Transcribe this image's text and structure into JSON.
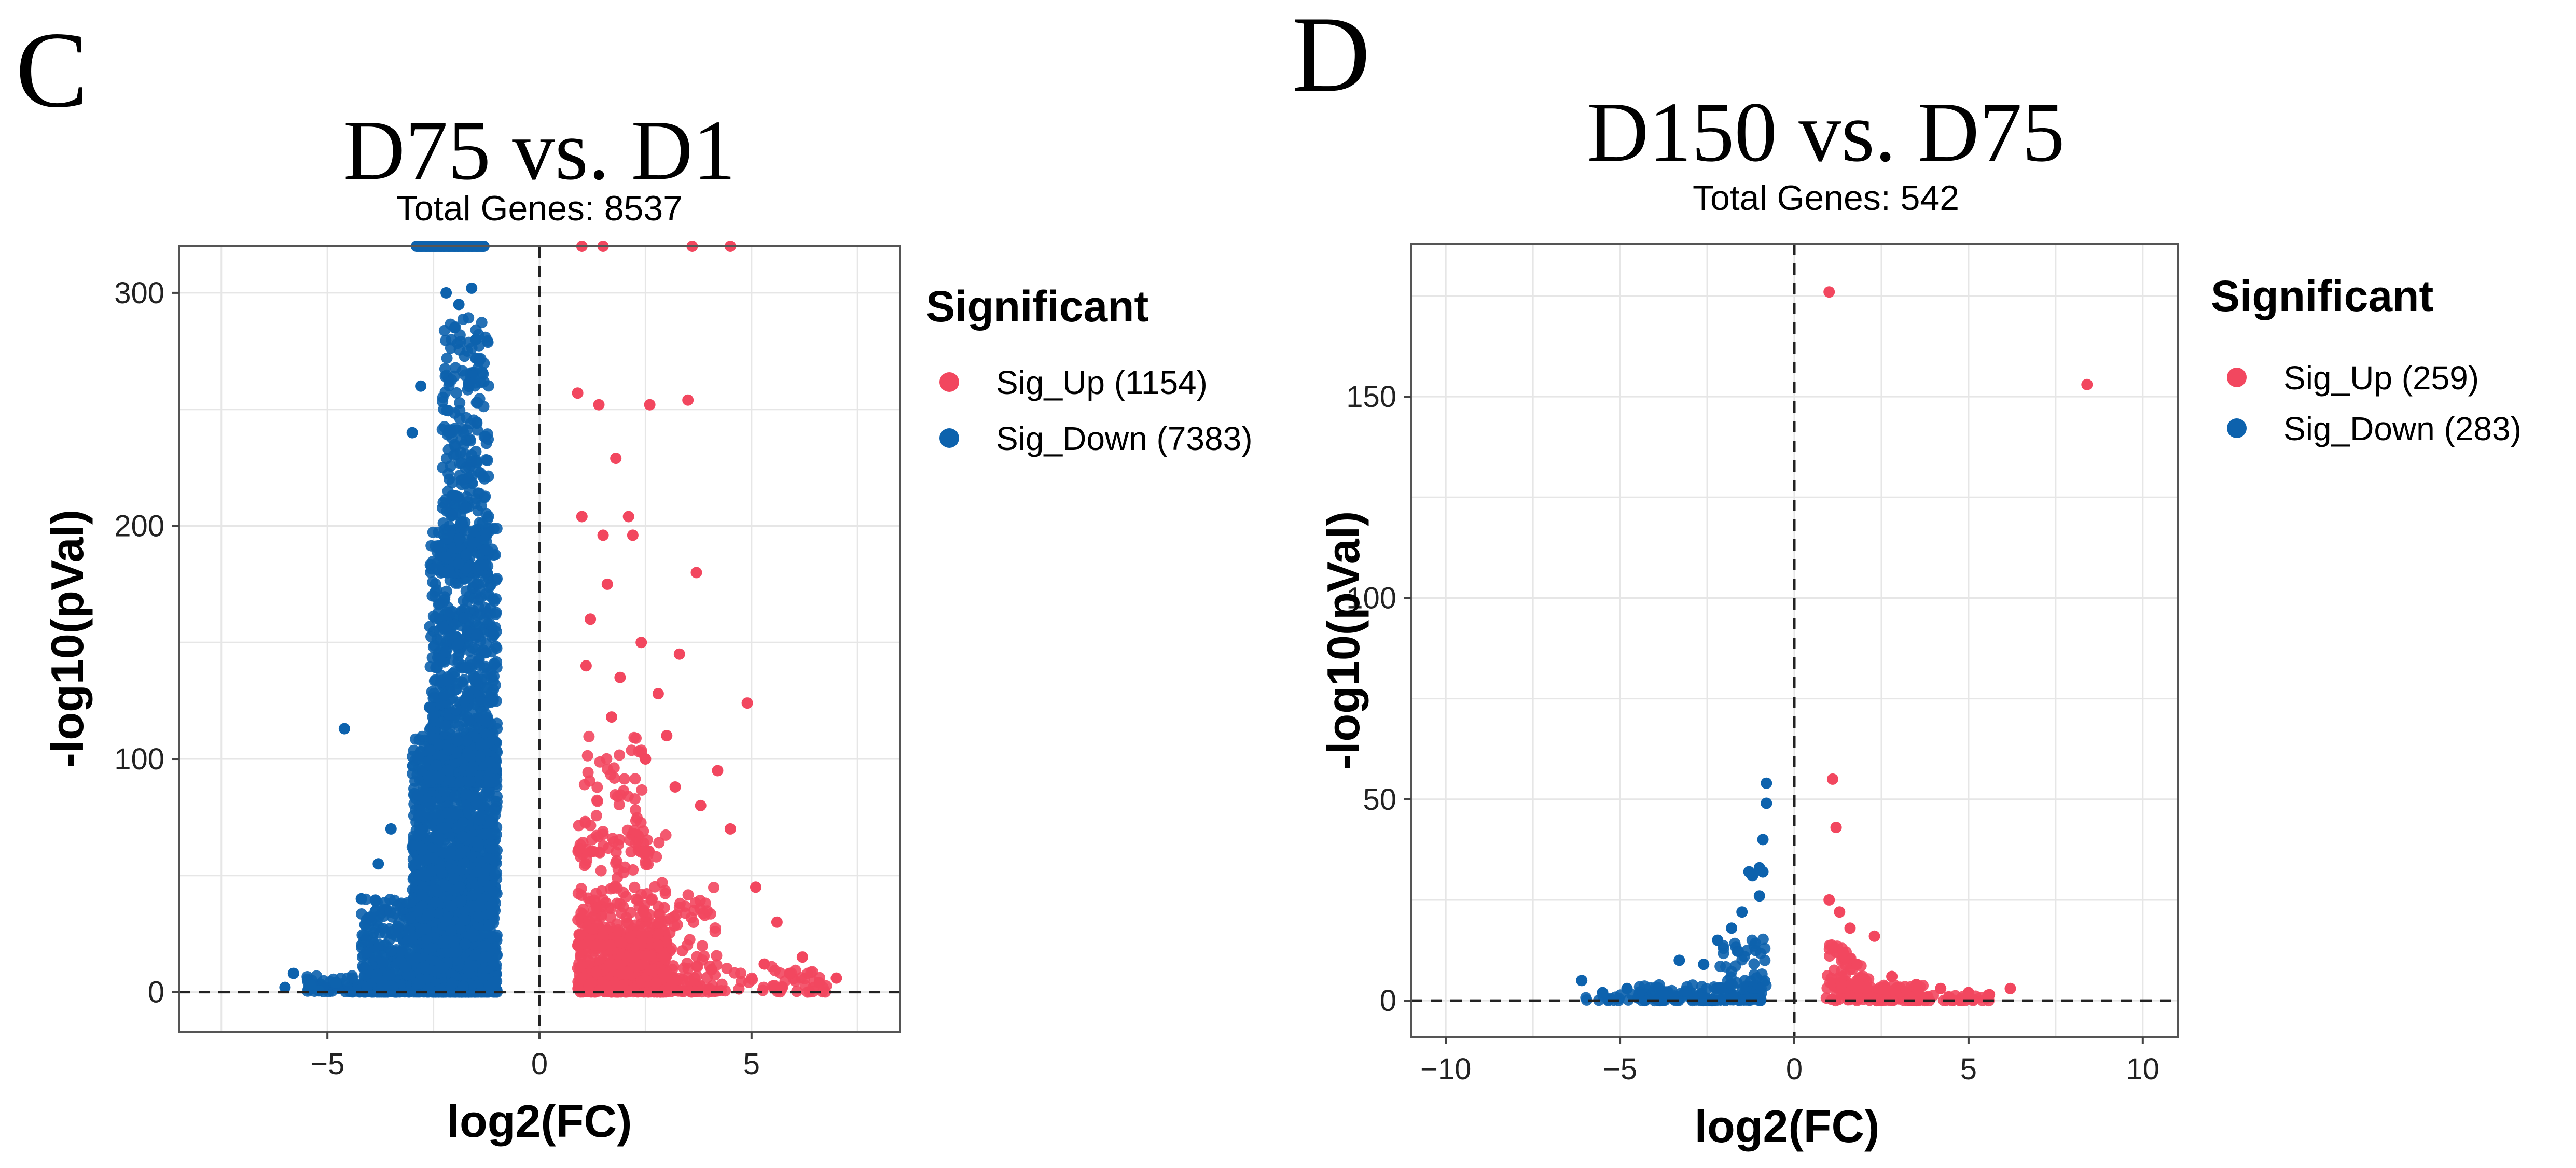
{
  "colors": {
    "sig_up": "#f2475f",
    "sig_down": "#0d62ad",
    "grid": "#e6e6e6",
    "axis": "#333333",
    "threshold": "#222222"
  },
  "chart_data": [
    {
      "type": "scatter",
      "panel_letter": "C",
      "title": "D75 vs. D1",
      "subtitle": "Total Genes: 8537",
      "xlabel": "log2(FC)",
      "ylabel": "-log10(pVal)",
      "xlim": [
        -8.5,
        8.5
      ],
      "ylim": [
        -17,
        320
      ],
      "xticks": [
        -5,
        0,
        5
      ],
      "yticks": [
        0,
        100,
        200,
        300
      ],
      "grid": true,
      "threshold_x": 0,
      "threshold_y": 0,
      "legend": {
        "title": "Significant",
        "position": "right",
        "items": [
          {
            "key": "up",
            "label": "Sig_Up (1154)",
            "color": "#f2475f"
          },
          {
            "key": "down",
            "label": "Sig_Down (7383)",
            "color": "#0d62ad"
          }
        ]
      },
      "series": {
        "up": {
          "name": "Sig_Up",
          "count": 1154,
          "points": [
            [
              0.9,
              257
            ],
            [
              1.4,
              252
            ],
            [
              2.6,
              252
            ],
            [
              3.5,
              254
            ],
            [
              1.8,
              229
            ],
            [
              1.0,
              204
            ],
            [
              1.5,
              196
            ],
            [
              2.1,
              204
            ],
            [
              2.2,
              196
            ],
            [
              3.7,
              180
            ],
            [
              3.3,
              145
            ],
            [
              4.9,
              124
            ],
            [
              1.6,
              175
            ],
            [
              1.2,
              160
            ],
            [
              2.4,
              150
            ],
            [
              1.9,
              135
            ],
            [
              2.8,
              128
            ],
            [
              3.0,
              110
            ],
            [
              4.2,
              95
            ],
            [
              3.8,
              80
            ],
            [
              1.1,
              140
            ],
            [
              1.7,
              118
            ],
            [
              2.5,
              100
            ],
            [
              3.2,
              88
            ],
            [
              4.5,
              70
            ],
            [
              5.1,
              45
            ],
            [
              5.6,
              30
            ],
            [
              6.2,
              15
            ],
            [
              7.0,
              6
            ],
            [
              6.6,
              4
            ],
            [
              5.9,
              8
            ],
            [
              5.3,
              12
            ],
            [
              1.5,
              320
            ],
            [
              4.5,
              320
            ],
            [
              3.6,
              320
            ],
            [
              1.0,
              320
            ]
          ],
          "cloud": {
            "layers": [
              {
                "n": 480,
                "x": [
                  0.9,
                  3.0
                ],
                "y": [
                  0,
                  25
                ]
              },
              {
                "n": 220,
                "x": [
                  0.9,
                  4.2
                ],
                "y": [
                  0,
                  45
                ]
              },
              {
                "n": 140,
                "x": [
                  0.9,
                  3.0
                ],
                "y": [
                  20,
                  75
                ]
              },
              {
                "n": 70,
                "x": [
                  0.9,
                  2.6
                ],
                "y": [
                  60,
                  110
                ]
              },
              {
                "n": 70,
                "x": [
                  2.5,
                  6.8
                ],
                "y": [
                  0,
                  12
                ]
              }
            ]
          }
        },
        "down": {
          "name": "Sig_Down",
          "count": 7383,
          "points": [
            [
              -4.6,
              113
            ],
            [
              -5.8,
              8
            ],
            [
              -6.0,
              2
            ],
            [
              -5.4,
              3
            ],
            [
              -4.8,
              4
            ],
            [
              -5.2,
              0.5
            ],
            [
              -4.2,
              40
            ],
            [
              -3.8,
              55
            ],
            [
              -3.5,
              70
            ],
            [
              -2.2,
              300
            ],
            [
              -1.6,
              302
            ],
            [
              -1.9,
              295
            ],
            [
              -2.0,
              285
            ],
            [
              -1.5,
              280
            ],
            [
              -3.0,
              240
            ],
            [
              -2.8,
              260
            ]
          ],
          "cloud": {
            "layers": [
              {
                "n": 2300,
                "x": [
                  -3.0,
                  -1.0
                ],
                "y": [
                  0,
                  110
                ]
              },
              {
                "n": 800,
                "x": [
                  -2.6,
                  -1.0
                ],
                "y": [
                  90,
                  200
                ]
              },
              {
                "n": 350,
                "x": [
                  -2.3,
                  -1.2
                ],
                "y": [
                  180,
                  290
                ]
              },
              {
                "n": 300,
                "x": [
                  -4.2,
                  -3.0
                ],
                "y": [
                  0,
                  40
                ]
              },
              {
                "n": 80,
                "x": [
                  -5.5,
                  -3.5
                ],
                "y": [
                  0,
                  8
                ]
              }
            ],
            "ceiling_band": {
              "x": [
                -2.9,
                -1.3
              ],
              "y": 320
            }
          }
        }
      }
    },
    {
      "type": "scatter",
      "panel_letter": "D",
      "title": "D150 vs. D75",
      "subtitle": "Total Genes: 542",
      "xlabel": "log2(FC)",
      "ylabel": "-log10(pVal)",
      "xlim": [
        -11,
        11
      ],
      "ylim": [
        -9,
        188
      ],
      "xticks": [
        -10,
        -5,
        0,
        5,
        10
      ],
      "yticks": [
        0,
        50,
        100,
        150
      ],
      "grid": true,
      "threshold_x": 0,
      "threshold_y": 0,
      "legend": {
        "title": "Significant",
        "position": "right",
        "items": [
          {
            "key": "up",
            "label": "Sig_Up (259)",
            "color": "#f2475f"
          },
          {
            "key": "down",
            "label": "Sig_Down (283)",
            "color": "#0d62ad"
          }
        ]
      },
      "series": {
        "up": {
          "name": "Sig_Up",
          "count": 259,
          "points": [
            [
              1.0,
              176
            ],
            [
              8.4,
              153
            ],
            [
              1.1,
              55
            ],
            [
              1.2,
              43
            ],
            [
              1.0,
              25
            ],
            [
              1.3,
              22
            ],
            [
              1.6,
              18
            ],
            [
              2.3,
              16
            ],
            [
              2.8,
              6
            ],
            [
              3.5,
              4
            ],
            [
              4.2,
              3
            ],
            [
              5.0,
              2
            ],
            [
              6.2,
              3
            ],
            [
              5.6,
              1.5
            ],
            [
              1.4,
              12
            ],
            [
              1.8,
              9
            ]
          ],
          "cloud": {
            "layers": [
              {
                "n": 130,
                "x": [
                  0.9,
                  3.8
                ],
                "y": [
                  0,
                  4
                ]
              },
              {
                "n": 60,
                "x": [
                  0.9,
                  2.2
                ],
                "y": [
                  3,
                  14
                ]
              },
              {
                "n": 30,
                "x": [
                  3.5,
                  5.6
                ],
                "y": [
                  0,
                  2.5
                ]
              }
            ]
          }
        },
        "down": {
          "name": "Sig_Down",
          "count": 283,
          "points": [
            [
              -0.8,
              54
            ],
            [
              -0.8,
              49
            ],
            [
              -1.0,
              33
            ],
            [
              -0.9,
              32
            ],
            [
              -1.3,
              32
            ],
            [
              -1.2,
              31
            ],
            [
              -1.0,
              26
            ],
            [
              -1.5,
              22
            ],
            [
              -1.8,
              18
            ],
            [
              -2.2,
              15
            ],
            [
              -3.3,
              10
            ],
            [
              -6.1,
              5
            ],
            [
              -5.5,
              2
            ],
            [
              -4.8,
              3
            ],
            [
              -2.6,
              9
            ],
            [
              -0.9,
              40
            ]
          ],
          "cloud": {
            "layers": [
              {
                "n": 150,
                "x": [
                  -4.5,
                  -0.9
                ],
                "y": [
                  0,
                  4
                ]
              },
              {
                "n": 50,
                "x": [
                  -2.2,
                  -0.8
                ],
                "y": [
                  3,
                  16
                ]
              },
              {
                "n": 15,
                "x": [
                  -6.0,
                  -4.5
                ],
                "y": [
                  0,
                  2
                ]
              }
            ]
          }
        }
      }
    }
  ]
}
